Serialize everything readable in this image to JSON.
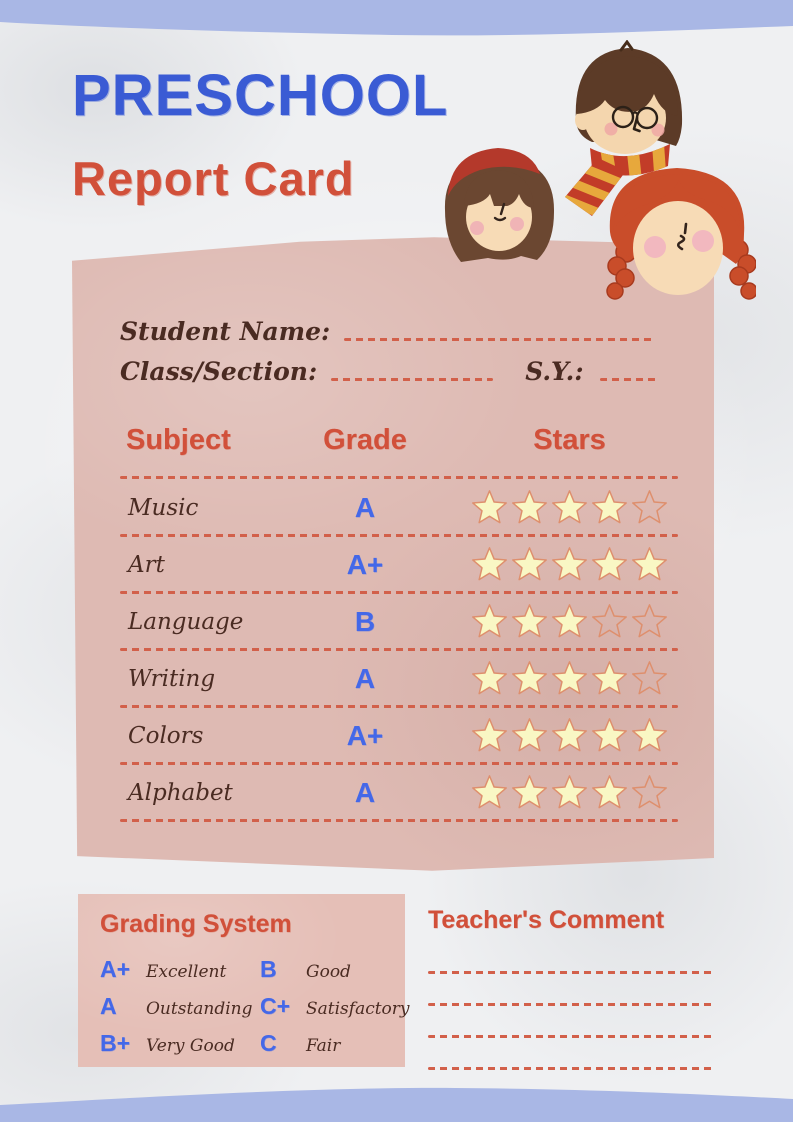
{
  "header": {
    "title_line1": "PRESCHOOL",
    "title_line2": "Report Card"
  },
  "student_info": {
    "name_label": "Student Name:",
    "name_value": "",
    "class_label": "Class/Section:",
    "class_value": "",
    "sy_label": "S.Y.:",
    "sy_value": ""
  },
  "table": {
    "headers": [
      "Subject",
      "Grade",
      "Stars"
    ],
    "max_stars": 5,
    "rows": [
      {
        "subject": "Music",
        "grade": "A",
        "stars": 4
      },
      {
        "subject": "Art",
        "grade": "A+",
        "stars": 5
      },
      {
        "subject": "Language",
        "grade": "B",
        "stars": 3
      },
      {
        "subject": "Writing",
        "grade": "A",
        "stars": 4
      },
      {
        "subject": "Colors",
        "grade": "A+",
        "stars": 5
      },
      {
        "subject": "Alphabet",
        "grade": "A",
        "stars": 4
      }
    ]
  },
  "grading_system": {
    "title": "Grading System",
    "entries": [
      {
        "grade": "A+",
        "label": "Excellent"
      },
      {
        "grade": "A",
        "label": "Outstanding"
      },
      {
        "grade": "B+",
        "label": "Very Good"
      },
      {
        "grade": "B",
        "label": "Good"
      },
      {
        "grade": "C+",
        "label": "Satisfactory"
      },
      {
        "grade": "C",
        "label": "Fair"
      }
    ]
  },
  "teacher_comment": {
    "title": "Teacher's Comment",
    "line_count": 4,
    "value": ""
  },
  "illustrations": [
    {
      "name": "boy-with-glasses-and-scarf"
    },
    {
      "name": "girl-with-red-beret"
    },
    {
      "name": "girl-with-braids"
    }
  ],
  "colors": {
    "title_blue": "#3a5bd4",
    "accent_red": "#d1503a",
    "grade_blue": "#4468e8",
    "card_pink": "#debab3",
    "panel_pink": "#e5bfb7",
    "dash_salmon": "#d2604a",
    "star_fill": "#f9f7c4",
    "star_stroke": "#de8f6d",
    "band_blue": "#a9b7e5",
    "handwriting_brown": "#4a2b22"
  }
}
